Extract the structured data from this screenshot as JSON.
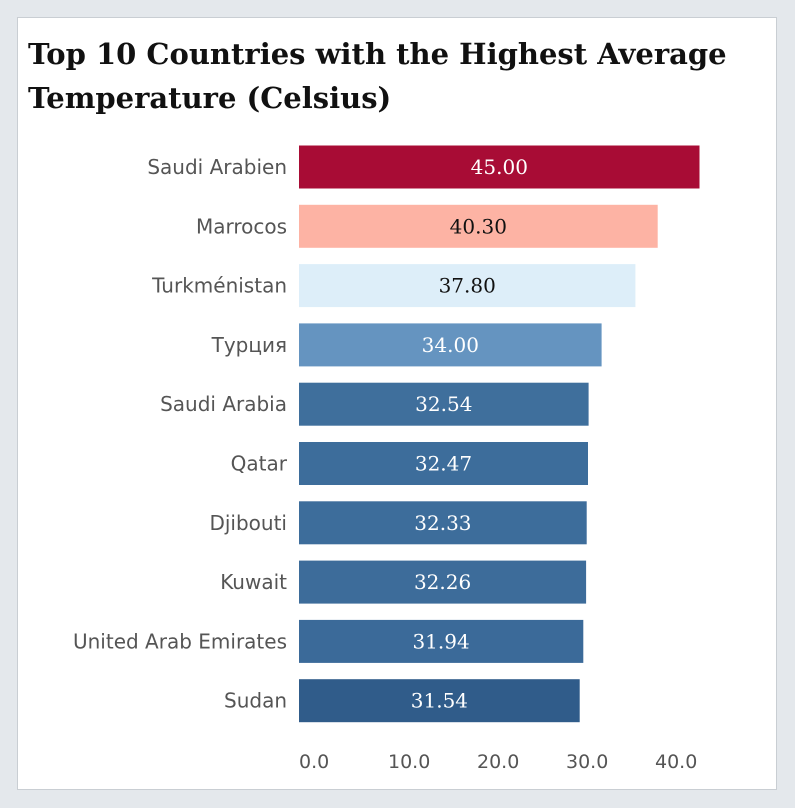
{
  "chart_data": {
    "type": "bar",
    "orientation": "horizontal",
    "title": "Top 10 Countries with the Highest Average Temperature (Celsius)",
    "categories": [
      "Saudi Arabien",
      "Marrocos",
      "Turkménistan",
      "Турция",
      "Saudi Arabia",
      "Qatar",
      "Djibouti",
      "Kuwait",
      "United Arab Emirates",
      "Sudan"
    ],
    "values": [
      45.0,
      40.3,
      37.8,
      34.0,
      32.54,
      32.47,
      32.33,
      32.26,
      31.94,
      31.54
    ],
    "value_labels": [
      "45.00",
      "40.30",
      "37.80",
      "34.00",
      "32.54",
      "32.47",
      "32.33",
      "32.26",
      "31.94",
      "31.54"
    ],
    "bar_colors": [
      "#a80c35",
      "#fdb3a4",
      "#ddeef9",
      "#6594c0",
      "#3f6f9c",
      "#3d6d9b",
      "#3d6d9b",
      "#3d6c9a",
      "#3b6a99",
      "#305c8a"
    ],
    "label_colors": [
      "#ffffff",
      "#111111",
      "#111111",
      "#ffffff",
      "#ffffff",
      "#ffffff",
      "#ffffff",
      "#ffffff",
      "#ffffff",
      "#ffffff"
    ],
    "xticks": [
      "0.0",
      "10.0",
      "20.0",
      "30.0",
      "40.0"
    ],
    "xlim": [
      0,
      45.5
    ],
    "xlabel": "",
    "ylabel": "",
    "grid": false,
    "legend": "none"
  }
}
